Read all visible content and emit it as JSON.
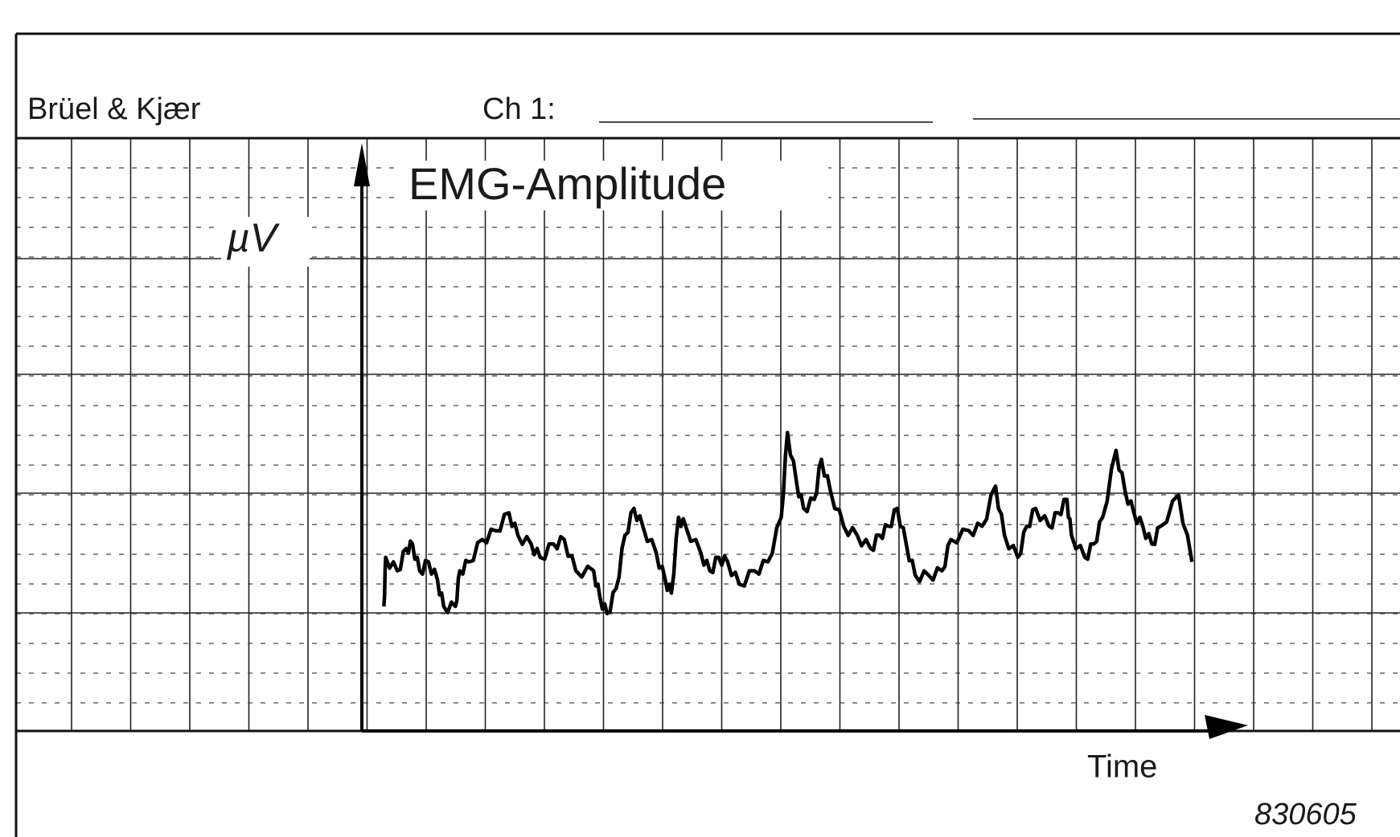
{
  "header": {
    "brand": "Brüel & Kjær",
    "channel": "Ch 1:"
  },
  "plot": {
    "y_label": "EMG-Amplitude",
    "y_unit": "µV",
    "x_label": "Time"
  },
  "footer": {
    "figure_id": "830605"
  }
}
